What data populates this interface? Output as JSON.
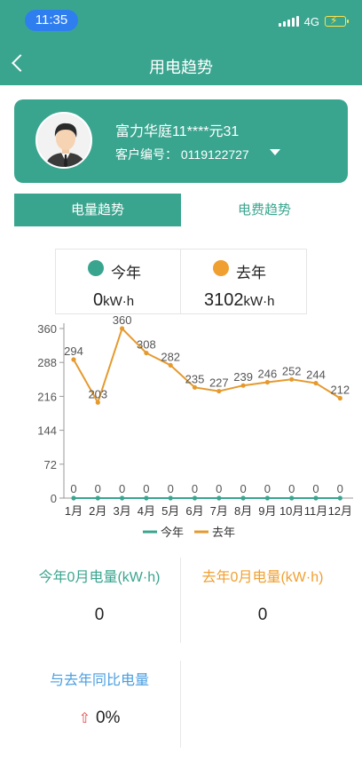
{
  "status": {
    "time": "11:35",
    "network": "4G"
  },
  "header": {
    "title": "用电趋势"
  },
  "customer": {
    "name": "富力华庭11****元31",
    "number_label": "客户编号：",
    "number": "0119122727"
  },
  "tabs": [
    {
      "label": "电量趋势",
      "active": true
    },
    {
      "label": "电费趋势",
      "active": false
    }
  ],
  "legend": {
    "this_year": {
      "label": "今年",
      "value": "0",
      "unit": "kW·h",
      "color": "#3aa58f"
    },
    "last_year": {
      "label": "去年",
      "value": "3102",
      "unit": "kW·h",
      "color": "#f0a030"
    }
  },
  "chart_data": {
    "type": "line",
    "categories": [
      "1月",
      "2月",
      "3月",
      "4月",
      "5月",
      "6月",
      "7月",
      "8月",
      "9月",
      "10月",
      "11月",
      "12月"
    ],
    "series": [
      {
        "name": "今年",
        "color": "#3aa58f",
        "values": [
          0,
          0,
          0,
          0,
          0,
          0,
          0,
          0,
          0,
          0,
          0,
          0
        ]
      },
      {
        "name": "去年",
        "color": "#e59a2e",
        "values": [
          294,
          203,
          360,
          308,
          282,
          235,
          227,
          239,
          246,
          252,
          244,
          212
        ]
      }
    ],
    "yticks": [
      "0",
      "72",
      "144",
      "216",
      "288",
      "360"
    ],
    "ylim": [
      0,
      360
    ],
    "grid": false,
    "legend_position": "bottom"
  },
  "stats": {
    "this_month_label": "今年0月电量(kW·h)",
    "this_month_value": "0",
    "last_month_label": "去年0月电量(kW·h)",
    "last_month_value": "0",
    "yoy_label": "与去年同比电量",
    "yoy_value": "0%"
  }
}
